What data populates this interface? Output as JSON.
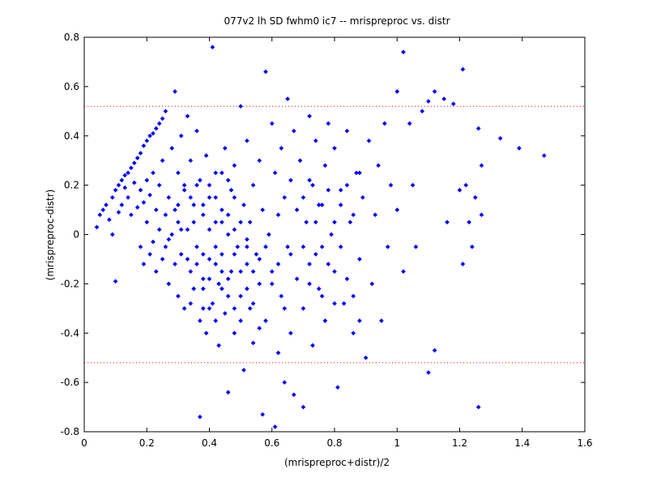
{
  "chart_data": {
    "type": "scatter",
    "title": "077v2 lh SD fwhm0 ic7 -- mrispreproc vs. distr",
    "xlabel": "(mrispreproc+distr)/2",
    "ylabel": "(mrispreproc-distr)",
    "xlim": [
      0,
      1.6
    ],
    "ylim": [
      -0.8,
      0.8
    ],
    "xticks": [
      "0",
      "0.2",
      "0.4",
      "0.6",
      "0.8",
      "1",
      "1.2",
      "1.4",
      "1.6"
    ],
    "yticks": [
      "0.8",
      "0.6",
      "0.4",
      "0.2",
      "0",
      "-0.2",
      "-0.4",
      "-0.6",
      "-0.8"
    ],
    "grid": false,
    "reference_lines": [
      {
        "y": 0.52,
        "style": "dotted",
        "color": "#ff0000"
      },
      {
        "y": -0.52,
        "style": "dotted",
        "color": "#ff0000"
      }
    ],
    "marker_color": "#0000ff",
    "series": [
      {
        "marker": "dot",
        "color": "#0000ff",
        "points": [
          [
            0.04,
            0.03
          ],
          [
            0.05,
            0.08
          ],
          [
            0.06,
            0.1
          ],
          [
            0.07,
            0.12
          ],
          [
            0.08,
            0.06
          ],
          [
            0.09,
            0.15
          ],
          [
            0.09,
            0.0
          ],
          [
            0.1,
            0.18
          ],
          [
            0.1,
            -0.19
          ],
          [
            0.11,
            0.2
          ],
          [
            0.11,
            0.09
          ],
          [
            0.12,
            0.22
          ],
          [
            0.12,
            0.12
          ],
          [
            0.13,
            0.24
          ],
          [
            0.13,
            0.19
          ],
          [
            0.14,
            0.25
          ],
          [
            0.14,
            0.15
          ],
          [
            0.15,
            0.27
          ],
          [
            0.15,
            0.08
          ],
          [
            0.16,
            0.29
          ],
          [
            0.16,
            0.21
          ],
          [
            0.17,
            0.31
          ],
          [
            0.17,
            0.11
          ],
          [
            0.18,
            0.33
          ],
          [
            0.18,
            -0.05
          ],
          [
            0.18,
            0.18
          ],
          [
            0.19,
            0.36
          ],
          [
            0.19,
            0.13
          ],
          [
            0.19,
            -0.12
          ],
          [
            0.2,
            0.38
          ],
          [
            0.2,
            0.22
          ],
          [
            0.2,
            0.05
          ],
          [
            0.21,
            0.4
          ],
          [
            0.21,
            -0.08
          ],
          [
            0.21,
            0.16
          ],
          [
            0.22,
            0.41
          ],
          [
            0.22,
            -0.03
          ],
          [
            0.22,
            0.25
          ],
          [
            0.23,
            0.43
          ],
          [
            0.23,
            0.1
          ],
          [
            0.23,
            -0.15
          ],
          [
            0.24,
            0.45
          ],
          [
            0.24,
            0.02
          ],
          [
            0.24,
            0.2
          ],
          [
            0.25,
            0.47
          ],
          [
            0.25,
            -0.1
          ],
          [
            0.25,
            0.3
          ],
          [
            0.26,
            0.5
          ],
          [
            0.26,
            0.08
          ],
          [
            0.26,
            -0.05
          ],
          [
            0.27,
            0.15
          ],
          [
            0.27,
            -0.2
          ],
          [
            0.28,
            0.35
          ],
          [
            0.28,
            0.0
          ],
          [
            0.29,
            0.58
          ],
          [
            0.29,
            -0.12
          ],
          [
            0.3,
            0.25
          ],
          [
            0.3,
            0.05
          ],
          [
            0.3,
            -0.25
          ],
          [
            0.31,
            0.4
          ],
          [
            0.31,
            -0.08
          ],
          [
            0.32,
            0.18
          ],
          [
            0.32,
            -0.3
          ],
          [
            0.33,
            0.48
          ],
          [
            0.33,
            0.02
          ],
          [
            0.34,
            -0.15
          ],
          [
            0.34,
            0.3
          ],
          [
            0.35,
            0.12
          ],
          [
            0.35,
            -0.22
          ],
          [
            0.36,
            0.42
          ],
          [
            0.36,
            -0.05
          ],
          [
            0.37,
            -0.74
          ],
          [
            0.37,
            0.22
          ],
          [
            0.37,
            -0.35
          ],
          [
            0.38,
            0.08
          ],
          [
            0.38,
            -0.18
          ],
          [
            0.39,
            0.32
          ],
          [
            0.39,
            -0.4
          ],
          [
            0.4,
            0.15
          ],
          [
            0.4,
            -0.1
          ],
          [
            0.41,
            0.76
          ],
          [
            0.41,
            -0.28
          ],
          [
            0.42,
            0.05
          ],
          [
            0.42,
            0.25
          ],
          [
            0.43,
            -0.2
          ],
          [
            0.43,
            -0.45
          ],
          [
            0.44,
            0.1
          ],
          [
            0.44,
            -0.08
          ],
          [
            0.45,
            0.35
          ],
          [
            0.45,
            -0.32
          ],
          [
            0.46,
            0.0
          ],
          [
            0.46,
            -0.64
          ],
          [
            0.47,
            0.18
          ],
          [
            0.47,
            -0.15
          ],
          [
            0.48,
            -0.4
          ],
          [
            0.48,
            0.28
          ],
          [
            0.49,
            -0.05
          ],
          [
            0.5,
            0.52
          ],
          [
            0.5,
            -0.25
          ],
          [
            0.51,
            0.12
          ],
          [
            0.51,
            -0.55
          ],
          [
            0.52,
            -0.12
          ],
          [
            0.52,
            0.38
          ],
          [
            0.53,
            -0.3
          ],
          [
            0.53,
            0.05
          ],
          [
            0.54,
            0.2
          ],
          [
            0.54,
            -0.44
          ],
          [
            0.55,
            -0.08
          ],
          [
            0.56,
            0.3
          ],
          [
            0.56,
            -0.2
          ],
          [
            0.57,
            -0.73
          ],
          [
            0.57,
            0.1
          ],
          [
            0.58,
            0.66
          ],
          [
            0.58,
            -0.35
          ],
          [
            0.59,
            0.0
          ],
          [
            0.6,
            0.45
          ],
          [
            0.6,
            -0.15
          ],
          [
            0.61,
            -0.78
          ],
          [
            0.61,
            0.25
          ],
          [
            0.62,
            -0.48
          ],
          [
            0.62,
            0.08
          ],
          [
            0.63,
            0.35
          ],
          [
            0.63,
            -0.25
          ],
          [
            0.64,
            0.15
          ],
          [
            0.64,
            -0.6
          ],
          [
            0.65,
            0.55
          ],
          [
            0.65,
            -0.05
          ],
          [
            0.66,
            -0.4
          ],
          [
            0.66,
            0.22
          ],
          [
            0.67,
            0.42
          ],
          [
            0.67,
            -0.65
          ],
          [
            0.68,
            -0.18
          ],
          [
            0.68,
            0.1
          ],
          [
            0.69,
            0.3
          ],
          [
            0.7,
            -0.3
          ],
          [
            0.7,
            -0.7
          ],
          [
            0.71,
            0.05
          ],
          [
            0.72,
            0.48
          ],
          [
            0.72,
            -0.12
          ],
          [
            0.73,
            0.2
          ],
          [
            0.73,
            -0.45
          ],
          [
            0.74,
            0.38
          ],
          [
            0.75,
            -0.22
          ],
          [
            0.75,
            0.12
          ],
          [
            0.76,
            -0.05
          ],
          [
            0.77,
            0.28
          ],
          [
            0.77,
            -0.35
          ],
          [
            0.78,
            0.45
          ],
          [
            0.79,
            0.0
          ],
          [
            0.8,
            -0.15
          ],
          [
            0.8,
            0.35
          ],
          [
            0.81,
            -0.62
          ],
          [
            0.82,
            0.18
          ],
          [
            0.83,
            -0.28
          ],
          [
            0.84,
            0.42
          ],
          [
            0.85,
            0.05
          ],
          [
            0.86,
            -0.4
          ],
          [
            0.87,
            0.25
          ],
          [
            0.88,
            -0.1
          ],
          [
            0.89,
            0.15
          ],
          [
            0.9,
            -0.5
          ],
          [
            0.91,
            0.38
          ],
          [
            0.92,
            -0.2
          ],
          [
            0.93,
            0.08
          ],
          [
            0.94,
            0.28
          ],
          [
            0.95,
            -0.35
          ],
          [
            0.96,
            0.45
          ],
          [
            0.97,
            -0.05
          ],
          [
            0.98,
            0.2
          ],
          [
            1.0,
            0.58
          ],
          [
            1.0,
            0.1
          ],
          [
            1.02,
            0.74
          ],
          [
            1.02,
            -0.15
          ],
          [
            1.04,
            0.45
          ],
          [
            1.05,
            0.2
          ],
          [
            1.06,
            -0.05
          ],
          [
            1.08,
            0.5
          ],
          [
            1.1,
            0.54
          ],
          [
            1.1,
            -0.56
          ],
          [
            1.12,
            0.58
          ],
          [
            1.12,
            -0.47
          ],
          [
            1.15,
            0.55
          ],
          [
            1.16,
            0.05
          ],
          [
            1.18,
            0.53
          ],
          [
            1.2,
            0.18
          ],
          [
            1.21,
            0.67
          ],
          [
            1.21,
            -0.12
          ],
          [
            1.22,
            0.2
          ],
          [
            1.23,
            0.05
          ],
          [
            1.24,
            -0.05
          ],
          [
            1.25,
            0.15
          ],
          [
            1.26,
            -0.7
          ],
          [
            1.26,
            0.43
          ],
          [
            1.27,
            0.28
          ],
          [
            1.27,
            0.08
          ],
          [
            1.33,
            0.39
          ],
          [
            1.39,
            0.35
          ],
          [
            1.47,
            0.32
          ],
          [
            0.27,
            -0.02
          ],
          [
            0.29,
            0.1
          ],
          [
            0.31,
            0.02
          ],
          [
            0.33,
            -0.1
          ],
          [
            0.35,
            0.05
          ],
          [
            0.38,
            -0.08
          ],
          [
            0.4,
            0.02
          ],
          [
            0.42,
            -0.12
          ],
          [
            0.44,
            -0.22
          ],
          [
            0.46,
            -0.18
          ],
          [
            0.48,
            -0.08
          ],
          [
            0.5,
            -0.15
          ],
          [
            0.52,
            -0.22
          ],
          [
            0.54,
            -0.28
          ],
          [
            0.56,
            -0.1
          ],
          [
            0.58,
            -0.05
          ],
          [
            0.6,
            -0.2
          ],
          [
            0.62,
            -0.12
          ],
          [
            0.64,
            -0.3
          ],
          [
            0.66,
            -0.08
          ],
          [
            0.38,
            -0.22
          ],
          [
            0.4,
            -0.3
          ],
          [
            0.42,
            -0.35
          ],
          [
            0.44,
            -0.15
          ],
          [
            0.46,
            -0.25
          ],
          [
            0.48,
            -0.3
          ],
          [
            0.5,
            -0.35
          ],
          [
            0.52,
            -0.05
          ],
          [
            0.54,
            -0.15
          ],
          [
            0.56,
            -0.38
          ],
          [
            0.34,
            -0.28
          ],
          [
            0.36,
            -0.12
          ],
          [
            0.38,
            -0.3
          ],
          [
            0.4,
            -0.18
          ],
          [
            0.42,
            -0.05
          ],
          [
            0.44,
            0.05
          ],
          [
            0.46,
            0.08
          ],
          [
            0.48,
            0.02
          ],
          [
            0.5,
            0.05
          ],
          [
            0.52,
            -0.02
          ],
          [
            0.3,
            0.12
          ],
          [
            0.32,
            0.2
          ],
          [
            0.34,
            0.15
          ],
          [
            0.36,
            0.2
          ],
          [
            0.38,
            0.12
          ],
          [
            0.4,
            0.2
          ],
          [
            0.42,
            0.15
          ],
          [
            0.44,
            0.25
          ],
          [
            0.46,
            0.22
          ],
          [
            0.48,
            0.15
          ],
          [
            0.7,
            0.15
          ],
          [
            0.72,
            0.22
          ],
          [
            0.74,
            0.05
          ],
          [
            0.76,
            0.12
          ],
          [
            0.78,
            0.18
          ],
          [
            0.8,
            0.05
          ],
          [
            0.82,
            0.12
          ],
          [
            0.84,
            0.2
          ],
          [
            0.86,
            0.08
          ],
          [
            0.88,
            0.25
          ],
          [
            0.7,
            -0.05
          ],
          [
            0.72,
            -0.2
          ],
          [
            0.74,
            -0.08
          ],
          [
            0.76,
            -0.25
          ],
          [
            0.78,
            -0.12
          ],
          [
            0.8,
            -0.28
          ],
          [
            0.82,
            -0.05
          ],
          [
            0.84,
            -0.18
          ],
          [
            0.86,
            -0.25
          ],
          [
            0.88,
            -0.35
          ]
        ]
      }
    ]
  }
}
